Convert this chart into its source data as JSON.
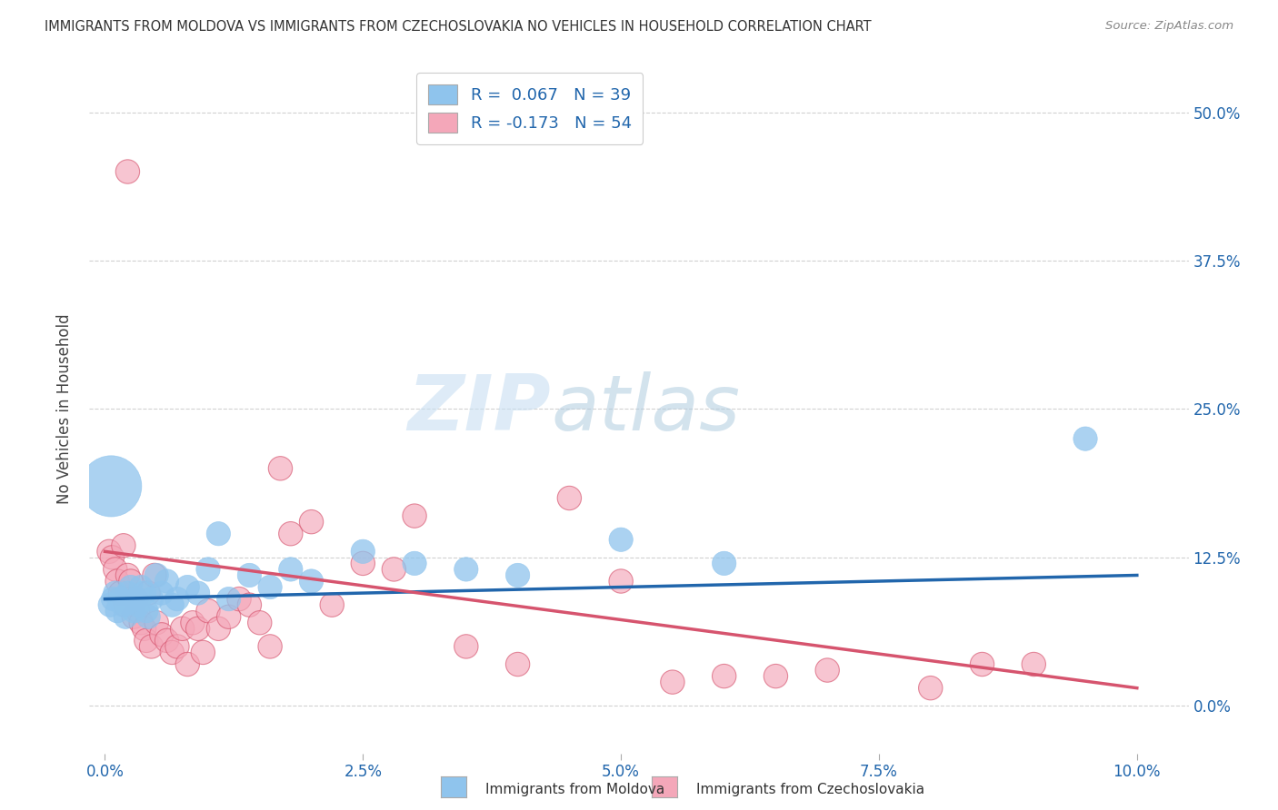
{
  "title": "IMMIGRANTS FROM MOLDOVA VS IMMIGRANTS FROM CZECHOSLOVAKIA NO VEHICLES IN HOUSEHOLD CORRELATION CHART",
  "source": "Source: ZipAtlas.com",
  "ylabel": "No Vehicles in Household",
  "xlabel_vals": [
    0.0,
    2.5,
    5.0,
    7.5,
    10.0
  ],
  "ylabel_vals": [
    0.0,
    12.5,
    25.0,
    37.5,
    50.0
  ],
  "xlim": [
    -0.15,
    10.5
  ],
  "ylim": [
    -4.0,
    54.0
  ],
  "moldova_color": "#8fc4ed",
  "moldova_color_line": "#2166ac",
  "czechoslovakia_color": "#f4a7b9",
  "czechoslovakia_color_line": "#d6546e",
  "moldova_R": 0.067,
  "moldova_N": 39,
  "czechoslovakia_R": -0.173,
  "czechoslovakia_N": 54,
  "watermark_zip": "ZIP",
  "watermark_atlas": "atlas",
  "legend_label_moldova": "Immigrants from Moldova",
  "legend_label_czechoslovakia": "Immigrants from Czechoslovakia",
  "moldova_x": [
    0.05,
    0.08,
    0.1,
    0.12,
    0.15,
    0.18,
    0.2,
    0.22,
    0.25,
    0.28,
    0.3,
    0.32,
    0.35,
    0.38,
    0.4,
    0.42,
    0.45,
    0.5,
    0.55,
    0.6,
    0.65,
    0.7,
    0.8,
    0.9,
    1.0,
    1.1,
    1.2,
    1.4,
    1.6,
    1.8,
    2.0,
    2.5,
    3.0,
    3.5,
    4.0,
    5.0,
    6.0,
    9.5,
    0.06
  ],
  "moldova_y": [
    8.5,
    9.0,
    9.5,
    8.0,
    9.0,
    8.5,
    7.5,
    9.5,
    10.0,
    8.0,
    9.0,
    8.5,
    10.0,
    9.5,
    8.0,
    7.5,
    9.0,
    11.0,
    9.5,
    10.5,
    8.5,
    9.0,
    10.0,
    9.5,
    11.5,
    14.5,
    9.0,
    11.0,
    10.0,
    11.5,
    10.5,
    13.0,
    12.0,
    11.5,
    11.0,
    14.0,
    12.0,
    22.5,
    18.5
  ],
  "moldova_size": [
    20,
    20,
    20,
    20,
    20,
    20,
    20,
    20,
    20,
    20,
    20,
    20,
    20,
    20,
    20,
    20,
    20,
    20,
    20,
    20,
    20,
    20,
    20,
    20,
    20,
    20,
    20,
    20,
    20,
    20,
    20,
    20,
    20,
    20,
    20,
    20,
    20,
    20,
    130
  ],
  "czechoslovakia_x": [
    0.04,
    0.07,
    0.1,
    0.12,
    0.15,
    0.18,
    0.2,
    0.22,
    0.25,
    0.28,
    0.3,
    0.32,
    0.35,
    0.38,
    0.4,
    0.42,
    0.45,
    0.48,
    0.5,
    0.55,
    0.6,
    0.65,
    0.7,
    0.75,
    0.8,
    0.85,
    0.9,
    0.95,
    1.0,
    1.1,
    1.2,
    1.3,
    1.4,
    1.5,
    1.6,
    1.7,
    1.8,
    2.0,
    2.2,
    2.5,
    2.8,
    3.0,
    3.5,
    4.0,
    4.5,
    5.0,
    5.5,
    6.0,
    6.5,
    7.0,
    8.0,
    8.5,
    9.0,
    0.22
  ],
  "czechoslovakia_y": [
    13.0,
    12.5,
    11.5,
    10.5,
    9.5,
    13.5,
    8.5,
    11.0,
    10.5,
    7.5,
    9.0,
    8.0,
    7.0,
    6.5,
    5.5,
    9.5,
    5.0,
    11.0,
    7.0,
    6.0,
    5.5,
    4.5,
    5.0,
    6.5,
    3.5,
    7.0,
    6.5,
    4.5,
    8.0,
    6.5,
    7.5,
    9.0,
    8.5,
    7.0,
    5.0,
    20.0,
    14.5,
    15.5,
    8.5,
    12.0,
    11.5,
    16.0,
    5.0,
    3.5,
    17.5,
    10.5,
    2.0,
    2.5,
    2.5,
    3.0,
    1.5,
    3.5,
    3.5,
    45.0
  ],
  "czechoslovakia_size": [
    20,
    20,
    20,
    20,
    20,
    20,
    20,
    20,
    20,
    20,
    20,
    20,
    20,
    20,
    20,
    20,
    20,
    20,
    20,
    20,
    20,
    20,
    20,
    20,
    20,
    20,
    20,
    20,
    20,
    20,
    20,
    20,
    20,
    20,
    20,
    20,
    20,
    20,
    20,
    20,
    20,
    20,
    20,
    20,
    20,
    20,
    20,
    20,
    20,
    20,
    20,
    20,
    20,
    20
  ]
}
